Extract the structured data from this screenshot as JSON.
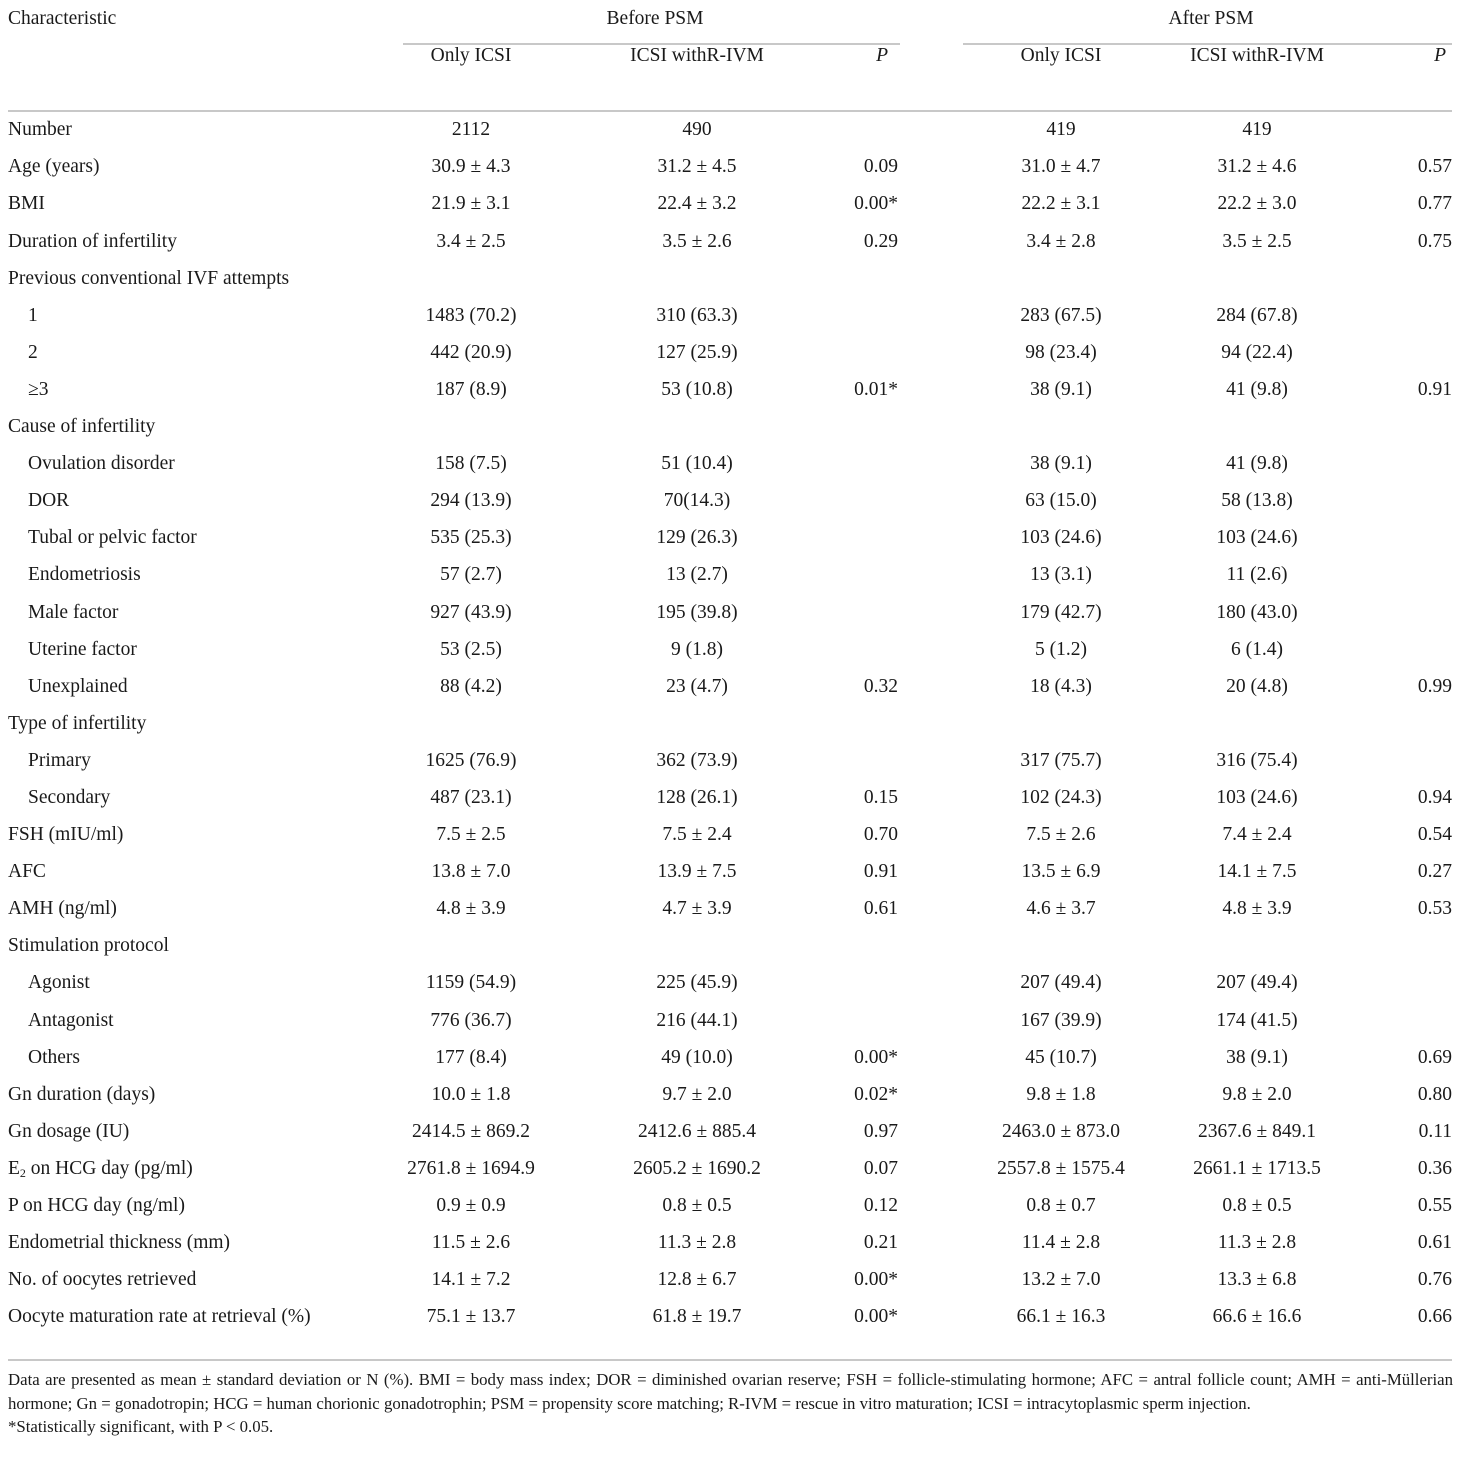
{
  "header": {
    "characteristic": "Characteristic",
    "before_psm": "Before PSM",
    "after_psm": "After PSM",
    "col_only_icsi": "Only ICSI",
    "col_icsi_rivm": "ICSI withR-IVM",
    "col_p": "P"
  },
  "rows": [
    {
      "label": "Number",
      "indent": false,
      "b1": "2112",
      "b2": "490",
      "bp": "",
      "a1": "419",
      "a2": "419",
      "ap": ""
    },
    {
      "label": "Age (years)",
      "indent": false,
      "b1": "30.9 ± 4.3",
      "b2": "31.2 ± 4.5",
      "bp": "0.09",
      "a1": "31.0 ± 4.7",
      "a2": "31.2 ± 4.6",
      "ap": "0.57"
    },
    {
      "label": "BMI",
      "indent": false,
      "b1": "21.9 ± 3.1",
      "b2": "22.4 ± 3.2",
      "bp": "0.00*",
      "a1": "22.2 ± 3.1",
      "a2": "22.2 ± 3.0",
      "ap": "0.77"
    },
    {
      "label": "Duration of infertility",
      "indent": false,
      "b1": "3.4 ± 2.5",
      "b2": "3.5 ± 2.6",
      "bp": "0.29",
      "a1": "3.4 ± 2.8",
      "a2": "3.5 ± 2.5",
      "ap": "0.75"
    },
    {
      "label": "Previous conventional IVF attempts",
      "indent": false,
      "b1": "",
      "b2": "",
      "bp": "",
      "a1": "",
      "a2": "",
      "ap": ""
    },
    {
      "label": "1",
      "indent": true,
      "b1": "1483 (70.2)",
      "b2": "310 (63.3)",
      "bp": "",
      "a1": "283 (67.5)",
      "a2": "284 (67.8)",
      "ap": ""
    },
    {
      "label": "2",
      "indent": true,
      "b1": "442 (20.9)",
      "b2": "127 (25.9)",
      "bp": "",
      "a1": "98 (23.4)",
      "a2": "94 (22.4)",
      "ap": ""
    },
    {
      "label": "≥3",
      "indent": true,
      "b1": "187 (8.9)",
      "b2": "53 (10.8)",
      "bp": "0.01*",
      "a1": "38 (9.1)",
      "a2": "41 (9.8)",
      "ap": "0.91"
    },
    {
      "label": "Cause of infertility",
      "indent": false,
      "b1": "",
      "b2": "",
      "bp": "",
      "a1": "",
      "a2": "",
      "ap": ""
    },
    {
      "label": "Ovulation disorder",
      "indent": true,
      "b1": "158 (7.5)",
      "b2": "51 (10.4)",
      "bp": "",
      "a1": "38 (9.1)",
      "a2": "41 (9.8)",
      "ap": ""
    },
    {
      "label": "DOR",
      "indent": true,
      "b1": "294 (13.9)",
      "b2": "70(14.3)",
      "bp": "",
      "a1": "63 (15.0)",
      "a2": "58 (13.8)",
      "ap": ""
    },
    {
      "label": "Tubal or pelvic factor",
      "indent": true,
      "b1": "535 (25.3)",
      "b2": "129 (26.3)",
      "bp": "",
      "a1": "103 (24.6)",
      "a2": "103 (24.6)",
      "ap": ""
    },
    {
      "label": "Endometriosis",
      "indent": true,
      "b1": "57 (2.7)",
      "b2": "13 (2.7)",
      "bp": "",
      "a1": "13 (3.1)",
      "a2": "11 (2.6)",
      "ap": ""
    },
    {
      "label": "Male factor",
      "indent": true,
      "b1": "927 (43.9)",
      "b2": "195 (39.8)",
      "bp": "",
      "a1": "179 (42.7)",
      "a2": "180 (43.0)",
      "ap": ""
    },
    {
      "label": "Uterine factor",
      "indent": true,
      "b1": "53 (2.5)",
      "b2": "9 (1.8)",
      "bp": "",
      "a1": "5 (1.2)",
      "a2": "6 (1.4)",
      "ap": ""
    },
    {
      "label": "Unexplained",
      "indent": true,
      "b1": "88 (4.2)",
      "b2": "23 (4.7)",
      "bp": "0.32",
      "a1": "18 (4.3)",
      "a2": "20 (4.8)",
      "ap": "0.99"
    },
    {
      "label": "Type of infertility",
      "indent": false,
      "b1": "",
      "b2": "",
      "bp": "",
      "a1": "",
      "a2": "",
      "ap": ""
    },
    {
      "label": "Primary",
      "indent": true,
      "b1": "1625 (76.9)",
      "b2": "362 (73.9)",
      "bp": "",
      "a1": "317 (75.7)",
      "a2": "316 (75.4)",
      "ap": ""
    },
    {
      "label": "Secondary",
      "indent": true,
      "b1": "487 (23.1)",
      "b2": "128 (26.1)",
      "bp": "0.15",
      "a1": "102 (24.3)",
      "a2": "103 (24.6)",
      "ap": "0.94"
    },
    {
      "label": "FSH (mIU/ml)",
      "indent": false,
      "b1": "7.5 ± 2.5",
      "b2": "7.5 ± 2.4",
      "bp": "0.70",
      "a1": "7.5 ± 2.6",
      "a2": "7.4 ± 2.4",
      "ap": "0.54"
    },
    {
      "label": "AFC",
      "indent": false,
      "b1": "13.8 ± 7.0",
      "b2": "13.9 ± 7.5",
      "bp": "0.91",
      "a1": "13.5 ± 6.9",
      "a2": "14.1 ± 7.5",
      "ap": "0.27"
    },
    {
      "label": "AMH (ng/ml)",
      "indent": false,
      "b1": "4.8 ± 3.9",
      "b2": "4.7 ± 3.9",
      "bp": "0.61",
      "a1": "4.6 ± 3.7",
      "a2": "4.8 ± 3.9",
      "ap": "0.53"
    },
    {
      "label": "Stimulation protocol",
      "indent": false,
      "b1": "",
      "b2": "",
      "bp": "",
      "a1": "",
      "a2": "",
      "ap": ""
    },
    {
      "label": "Agonist",
      "indent": true,
      "b1": "1159 (54.9)",
      "b2": "225 (45.9)",
      "bp": "",
      "a1": "207 (49.4)",
      "a2": "207 (49.4)",
      "ap": ""
    },
    {
      "label": "Antagonist",
      "indent": true,
      "b1": "776 (36.7)",
      "b2": "216 (44.1)",
      "bp": "",
      "a1": "167 (39.9)",
      "a2": "174 (41.5)",
      "ap": ""
    },
    {
      "label": "Others",
      "indent": true,
      "b1": "177 (8.4)",
      "b2": "49 (10.0)",
      "bp": "0.00*",
      "a1": "45 (10.7)",
      "a2": "38 (9.1)",
      "ap": "0.69"
    },
    {
      "label": "Gn duration (days)",
      "indent": false,
      "b1": "10.0 ± 1.8",
      "b2": "9.7 ± 2.0",
      "bp": "0.02*",
      "a1": "9.8 ± 1.8",
      "a2": "9.8 ± 2.0",
      "ap": "0.80"
    },
    {
      "label": "Gn dosage (IU)",
      "indent": false,
      "b1": "2414.5 ± 869.2",
      "b2": "2412.6 ± 885.4",
      "bp": "0.97",
      "a1": "2463.0 ± 873.0",
      "a2": "2367.6 ± 849.1",
      "ap": "0.11"
    },
    {
      "label_pre": "E",
      "label_sub": "2",
      "label_post": " on HCG day (pg/ml)",
      "indent": false,
      "b1": "2761.8 ± 1694.9",
      "b2": "2605.2 ± 1690.2",
      "bp": "0.07",
      "a1": "2557.8 ± 1575.4",
      "a2": "2661.1 ± 1713.5",
      "ap": "0.36"
    },
    {
      "label": "P on HCG day (ng/ml)",
      "indent": false,
      "b1": "0.9 ± 0.9",
      "b2": "0.8 ± 0.5",
      "bp": "0.12",
      "a1": "0.8 ± 0.7",
      "a2": "0.8 ± 0.5",
      "ap": "0.55"
    },
    {
      "label": "Endometrial thickness (mm)",
      "indent": false,
      "b1": "11.5 ± 2.6",
      "b2": "11.3 ± 2.8",
      "bp": "0.21",
      "a1": "11.4 ± 2.8",
      "a2": "11.3 ± 2.8",
      "ap": "0.61"
    },
    {
      "label": "No. of oocytes retrieved",
      "indent": false,
      "b1": "14.1 ± 7.2",
      "b2": "12.8 ± 6.7",
      "bp": "0.00*",
      "a1": "13.2 ± 7.0",
      "a2": "13.3 ± 6.8",
      "ap": "0.76"
    },
    {
      "label": "Oocyte maturation rate at retrieval (%)",
      "indent": false,
      "b1": "75.1 ± 13.7",
      "b2": "61.8 ± 19.7",
      "bp": "0.00*",
      "a1": "66.1 ± 16.3",
      "a2": "66.6 ± 16.6",
      "ap": "0.66"
    }
  ],
  "footnotes": {
    "abbreviations": "Data are presented as mean ± standard deviation or N (%). BMI = body mass index; DOR = diminished ovarian reserve; FSH = follicle-stimulating hormone; AFC = antral follicle count; AMH = anti-Müllerian hormone; Gn = gonadotropin; HCG = human chorionic gonadotrophin; PSM = propensity score matching; R-IVM = rescue in vitro maturation; ICSI = intracytoplasmic sperm injection.",
    "significance": "*Statistically significant, with P < 0.05."
  }
}
